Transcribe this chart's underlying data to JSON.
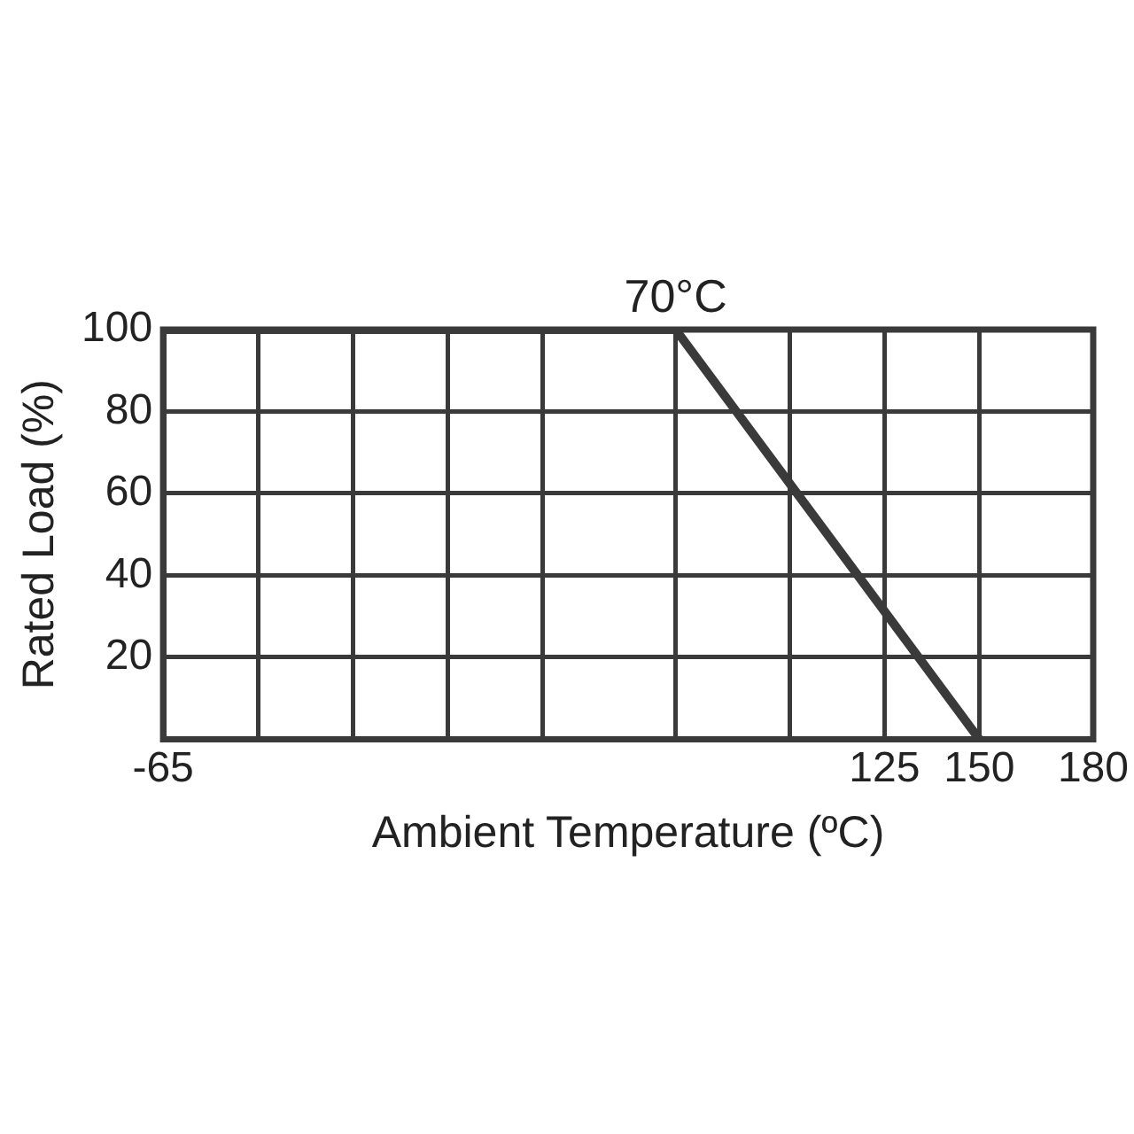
{
  "chart_data": {
    "type": "line",
    "xlabel": "Ambient Temperature (ºC)",
    "ylabel": "Rated Load (%)",
    "x": [
      -65,
      70,
      150
    ],
    "series": [
      {
        "color": "#3a3a3a",
        "values": [
          100,
          100,
          0
        ]
      }
    ],
    "xlim": [
      -65,
      180
    ],
    "xticks": [
      -65,
      {
        "value": -40,
        "label": null
      },
      {
        "value": -15,
        "label": null
      },
      {
        "value": 10,
        "label": null
      },
      {
        "value": 35,
        "label": null
      },
      {
        "value": 70,
        "label": null
      },
      {
        "value": 100,
        "label": null
      },
      125,
      150,
      180
    ],
    "ylim": [
      0,
      100
    ],
    "yticks": [
      {
        "value": 0,
        "label": null
      },
      20,
      40,
      60,
      80,
      100
    ],
    "grid": true,
    "legend": false,
    "marker": "none",
    "line_style": "solid",
    "annotations": [
      {
        "text": "70°C",
        "x": 70,
        "y": 100
      }
    ]
  }
}
